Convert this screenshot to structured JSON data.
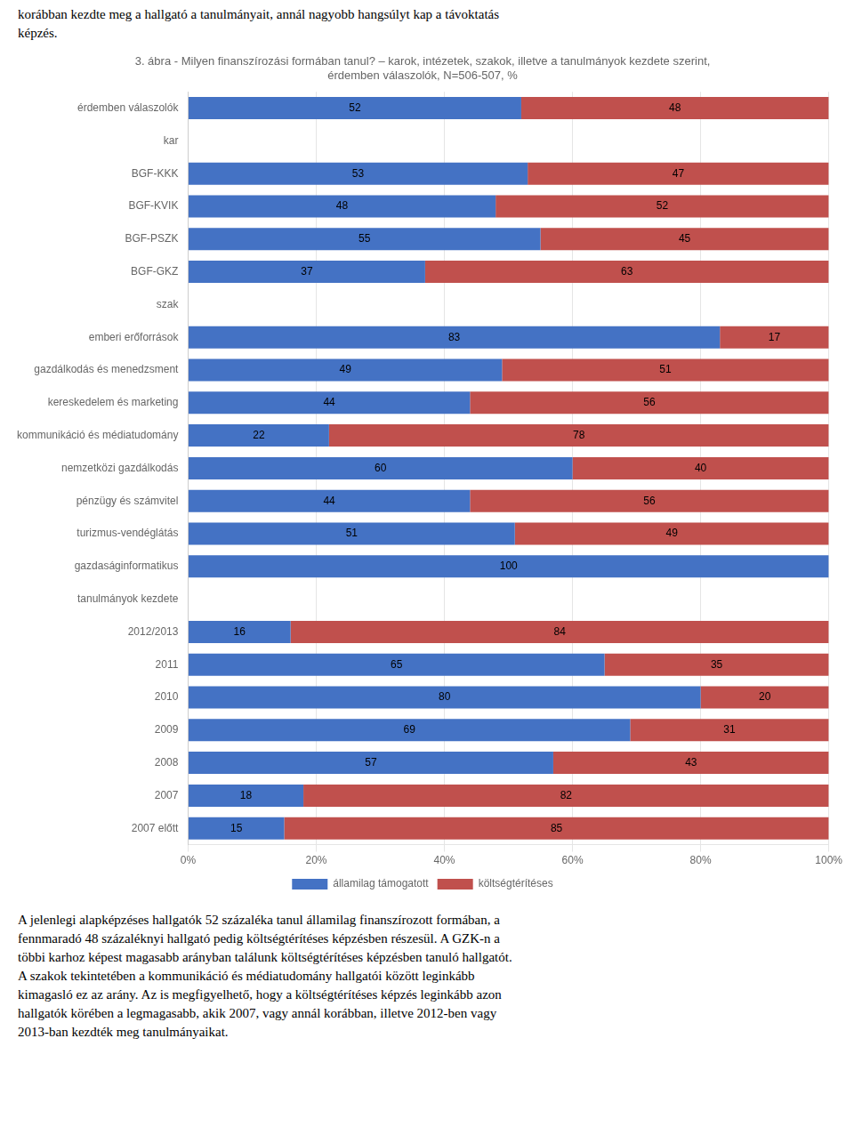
{
  "chart_data": {
    "type": "bar",
    "orientation": "horizontal",
    "stacked": true,
    "title": [
      "3. ábra - Milyen finanszírozási formában tanul? – karok, intézetek, szakok, illetve a tanulmányok kezdete szerint,",
      "érdemben válaszolók, N=506-507, %"
    ],
    "annotations": {
      "above": [
        "korábban kezdte meg a hallgató a tanulmányait, annál nagyobb hangsúlyt kap a távoktatás",
        "képzés."
      ],
      "below": [
        "A jelenlegi alapképzéses hallgatók 52 százaléka tanul államilag finanszírozott formában, a",
        "fennmaradó 48 százaléknyi hallgató pedig költségtérítéses képzésben részesül. A GZK-n a",
        "többi karhoz képest magasabb arányban találunk költségtérítéses képzésben tanuló hallgatót.",
        "A szakok tekintetében a kommunikáció és médiatudomány hallgatói között leginkább",
        "kimagasló ez az arány. Az is megfigyelhető, hogy a költségtérítéses képzés leginkább azon",
        "hallgatók körében a legmagasabb, akik 2007, vagy annál korábban, illetve 2012-ben vagy",
        "2013-ban kezdték meg tanulmányaikat."
      ]
    },
    "categories": [
      "érdemben válaszolók",
      "kar",
      "BGF-KKK",
      "BGF-KVIK",
      "BGF-PSZK",
      "BGF-GKZ",
      "szak",
      "emberi erőforrások",
      "gazdálkodás és menedzsment",
      "kereskedelem és marketing",
      "kommunikáció és médiatudomány",
      "nemzetközi gazdálkodás",
      "pénzügy és számvitel",
      "turizmus-vendéglátás",
      "gazdaságinformatikus",
      "tanulmányok kezdete",
      "2012/2013",
      "2011",
      "2010",
      "2009",
      "2008",
      "2007",
      "2007 előtt"
    ],
    "series": [
      {
        "name": "államilag támogatott",
        "color": "#4472C4",
        "values": [
          52,
          null,
          53,
          48,
          55,
          37,
          null,
          83,
          49,
          44,
          22,
          60,
          44,
          51,
          100,
          null,
          16,
          65,
          80,
          69,
          57,
          18,
          15
        ]
      },
      {
        "name": "költségtérítéses",
        "color": "#C0504D",
        "values": [
          48,
          null,
          47,
          52,
          45,
          63,
          null,
          17,
          51,
          56,
          78,
          40,
          56,
          49,
          0,
          null,
          84,
          35,
          20,
          31,
          43,
          82,
          85
        ]
      }
    ],
    "xlim": [
      0,
      100
    ],
    "xticks": [
      {
        "value": 0,
        "label": "0%"
      },
      {
        "value": 20,
        "label": "20%"
      },
      {
        "value": 40,
        "label": "40%"
      },
      {
        "value": 60,
        "label": "60%"
      },
      {
        "value": 80,
        "label": "80%"
      },
      {
        "value": 100,
        "label": "100%"
      }
    ],
    "grid": true,
    "legend": "bottom",
    "data_labels": true
  }
}
